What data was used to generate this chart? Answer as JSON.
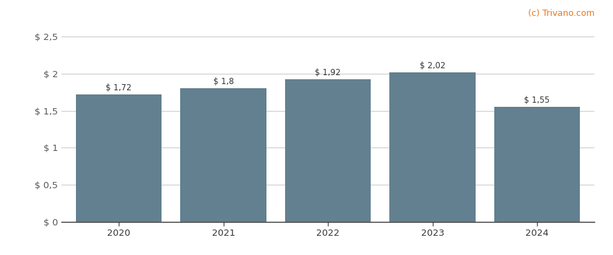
{
  "categories": [
    "2020",
    "2021",
    "2022",
    "2023",
    "2024"
  ],
  "values": [
    1.72,
    1.8,
    1.92,
    2.02,
    1.55
  ],
  "labels": [
    "$ 1,72",
    "$ 1,8",
    "$ 1,92",
    "$ 2,02",
    "$ 1,55"
  ],
  "bar_color": "#62808f",
  "background_color": "#ffffff",
  "grid_color": "#cccccc",
  "yticks": [
    0,
    0.5,
    1.0,
    1.5,
    2.0,
    2.5
  ],
  "ytick_labels": [
    "$ 0",
    "$ 0,5",
    "$ 1",
    "$ 1,5",
    "$ 2",
    "$ 2,5"
  ],
  "ylim": [
    0,
    2.65
  ],
  "watermark": "(c) Trivano.com",
  "watermark_color_blue": "#4472c4",
  "watermark_color_orange": "#e87722",
  "label_fontsize": 8.5,
  "tick_fontsize": 9.5,
  "watermark_fontsize": 9
}
